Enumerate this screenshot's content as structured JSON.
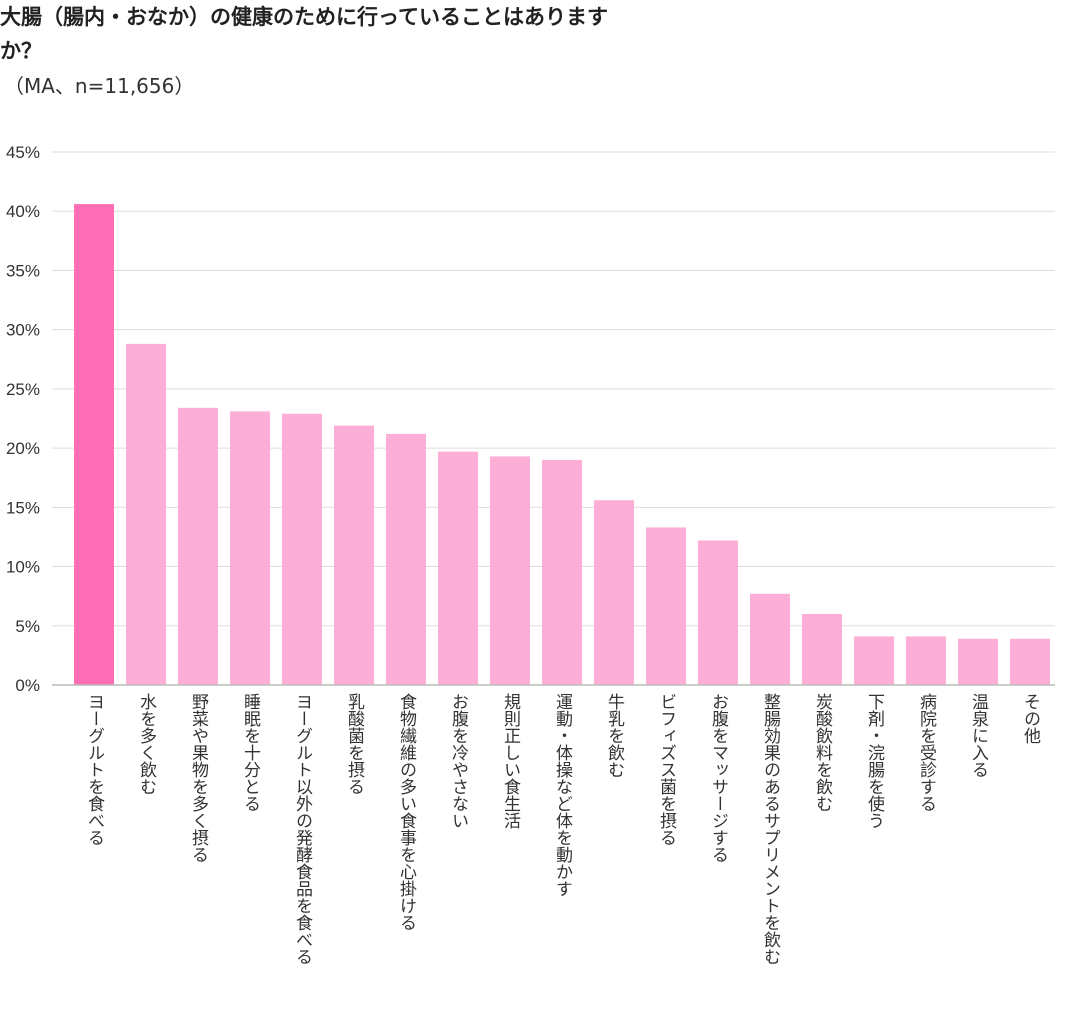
{
  "chart_data": {
    "type": "bar",
    "title": "大腸（腸内・おなか）の健康のために行っていることはありますか？",
    "subtitle": "（MA、n=11,656）",
    "xlabel": "",
    "ylabel": "",
    "ylim": [
      0,
      45
    ],
    "y_ticks": [
      "0%",
      "5%",
      "10%",
      "15%",
      "20%",
      "25%",
      "30%",
      "35%",
      "40%",
      "45%"
    ],
    "grid": true,
    "categories": [
      "ヨーグルトを食べる",
      "水を多く飲む",
      "野菜や果物を多く摂る",
      "睡眠を十分とる",
      "ヨーグルト以外の発酵食品を食べる",
      "乳酸菌を摂る",
      "食物繊維の多い食事を心掛ける",
      "お腹を冷やさない",
      "規則正しい食生活",
      "運動・体操など体を動かす",
      "牛乳を飲む",
      "ビフィズス菌を摂る",
      "お腹をマッサージする",
      "整腸効果のあるサプリメントを飲む",
      "炭酸飲料を飲む",
      "下剤・浣腸を使う",
      "病院を受診する",
      "温泉に入る",
      "その他"
    ],
    "values": [
      40.6,
      28.8,
      23.4,
      23.1,
      22.9,
      21.9,
      21.2,
      19.7,
      19.3,
      19.0,
      15.6,
      13.3,
      12.2,
      7.7,
      6.0,
      4.1,
      4.1,
      3.9,
      3.9
    ],
    "colors": {
      "highlight": "#ff6eb4",
      "bar": "#fcaed6"
    },
    "highlight_index": 0
  }
}
